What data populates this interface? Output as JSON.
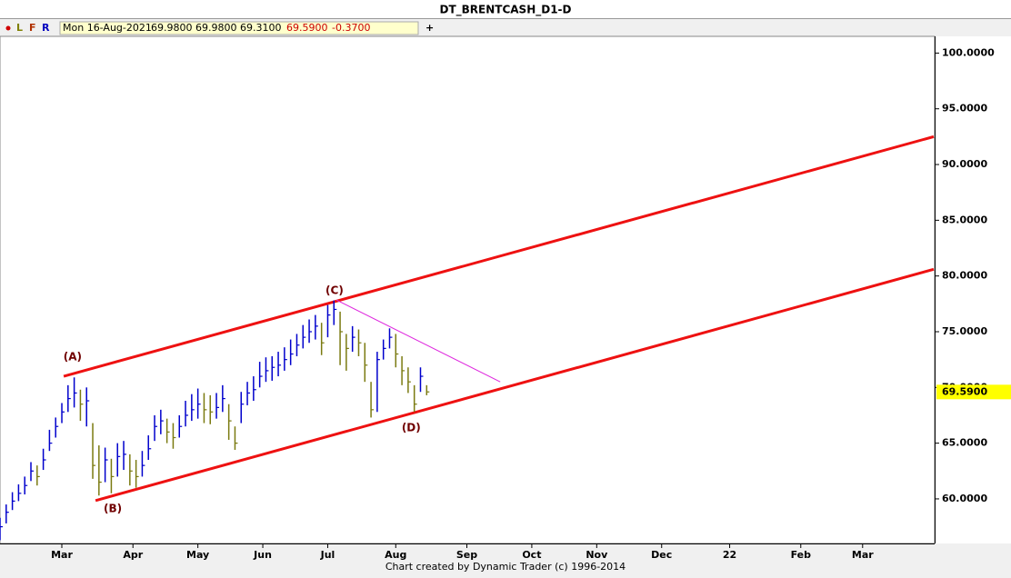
{
  "title": "DT_BRENTCASH_D1-D",
  "toolbar": {
    "buttons": [
      "L",
      "F",
      "R"
    ],
    "info": [
      "Mon 16-Aug-2021",
      "69.9800",
      "69.9800",
      "69.3100",
      "69.5900",
      "-0.3700"
    ],
    "add": "+"
  },
  "chart_data": {
    "type": "ohlc",
    "footer": "Chart created by Dynamic Trader  (c) 1996-2014",
    "up_color": "#0000cc",
    "down_color": "#7a7a10",
    "xlim": [
      0,
      302
    ],
    "ylim": [
      56,
      101.5
    ],
    "xticks": [
      {
        "value": 20,
        "label": "Mar"
      },
      {
        "value": 43,
        "label": "Apr"
      },
      {
        "value": 64,
        "label": "May"
      },
      {
        "value": 85,
        "label": "Jun"
      },
      {
        "value": 106,
        "label": "Jul"
      },
      {
        "value": 128,
        "label": "Aug"
      },
      {
        "value": 151,
        "label": "Sep"
      },
      {
        "value": 172,
        "label": "Oct"
      },
      {
        "value": 193,
        "label": "Nov"
      },
      {
        "value": 214,
        "label": "Dec"
      },
      {
        "value": 236,
        "label": "22"
      },
      {
        "value": 259,
        "label": "Feb"
      },
      {
        "value": 279,
        "label": "Mar"
      }
    ],
    "yticks": [
      {
        "value": 60,
        "label": "60.0000"
      },
      {
        "value": 65,
        "label": "65.0000"
      },
      {
        "value": 70,
        "label": "70.0000"
      },
      {
        "value": 75,
        "label": "75.0000"
      },
      {
        "value": 80,
        "label": "80.0000"
      },
      {
        "value": 85,
        "label": "85.0000"
      },
      {
        "value": 90,
        "label": "90.0000"
      },
      {
        "value": 95,
        "label": "95.0000"
      },
      {
        "value": 100,
        "label": "100.0000"
      }
    ],
    "last_price": {
      "value": 69.59,
      "label": "69.5900",
      "color": "#ffff00"
    },
    "x": [
      0,
      2,
      4,
      6,
      8,
      10,
      12,
      14,
      16,
      18,
      20,
      22,
      24,
      26,
      28,
      30,
      32,
      34,
      36,
      38,
      40,
      42,
      44,
      46,
      48,
      50,
      52,
      54,
      56,
      58,
      60,
      62,
      64,
      66,
      68,
      70,
      72,
      74,
      76,
      78,
      80,
      82,
      84,
      86,
      88,
      90,
      92,
      94,
      96,
      98,
      100,
      102,
      104,
      106,
      108,
      110,
      112,
      114,
      116,
      118,
      120,
      122,
      124,
      126,
      128,
      130,
      132,
      134,
      136,
      138
    ],
    "high": [
      58.3,
      59.5,
      60.6,
      61.3,
      62.0,
      63.3,
      63.0,
      64.5,
      66.2,
      67.3,
      68.6,
      70.2,
      70.9,
      69.8,
      70.0,
      66.8,
      64.8,
      64.6,
      63.6,
      65.0,
      65.2,
      64.0,
      63.5,
      64.3,
      65.7,
      67.5,
      68.0,
      67.2,
      66.8,
      67.5,
      68.8,
      69.4,
      69.9,
      69.5,
      69.3,
      69.5,
      70.2,
      68.5,
      66.5,
      69.6,
      70.5,
      71.0,
      72.3,
      72.7,
      72.8,
      73.2,
      73.6,
      74.3,
      74.8,
      75.6,
      76.1,
      76.5,
      75.8,
      77.4,
      77.8,
      76.8,
      74.8,
      75.5,
      75.2,
      74.0,
      70.5,
      73.2,
      74.3,
      75.3,
      74.8,
      72.8,
      71.8,
      70.2,
      71.8,
      70.2
    ],
    "low": [
      56.3,
      57.8,
      59.0,
      59.8,
      60.4,
      61.6,
      61.2,
      62.6,
      64.3,
      65.5,
      66.8,
      67.8,
      68.2,
      67.0,
      66.5,
      61.8,
      60.3,
      61.5,
      60.5,
      62.0,
      62.6,
      61.2,
      61.0,
      62.0,
      63.5,
      65.2,
      65.8,
      65.0,
      64.5,
      65.5,
      66.5,
      67.0,
      67.2,
      66.8,
      66.7,
      67.2,
      67.8,
      65.3,
      64.4,
      66.8,
      68.4,
      68.8,
      70.0,
      70.5,
      70.6,
      71.0,
      71.5,
      72.0,
      72.8,
      73.5,
      74.0,
      74.3,
      72.9,
      74.5,
      75.6,
      72.0,
      71.5,
      73.2,
      72.8,
      70.5,
      67.3,
      67.8,
      72.5,
      73.5,
      71.8,
      70.2,
      69.5,
      67.8,
      69.6,
      69.3
    ],
    "close": [
      57.5,
      58.8,
      59.8,
      60.5,
      61.2,
      62.5,
      62.0,
      63.5,
      65.0,
      66.5,
      67.8,
      69.0,
      69.5,
      68.5,
      68.8,
      63.0,
      61.5,
      63.5,
      62.0,
      63.8,
      64.0,
      62.5,
      62.0,
      63.0,
      64.5,
      66.5,
      67.0,
      66.0,
      65.5,
      66.5,
      67.5,
      68.0,
      68.5,
      68.0,
      67.8,
      68.2,
      69.0,
      67.0,
      65.0,
      68.5,
      69.5,
      69.8,
      71.0,
      71.5,
      71.8,
      72.0,
      72.5,
      73.0,
      73.8,
      74.5,
      75.0,
      75.5,
      74.0,
      76.5,
      77.0,
      75.0,
      73.5,
      74.5,
      74.0,
      72.0,
      68.0,
      72.5,
      73.5,
      74.5,
      73.0,
      71.5,
      70.5,
      68.5,
      71.0,
      69.6
    ],
    "trend_lines": [
      {
        "x": [
          20.6,
          302
        ],
        "y": [
          71.0,
          92.5
        ],
        "color": "#ee1111",
        "width": 3
      },
      {
        "x": [
          30.9,
          302
        ],
        "y": [
          59.85,
          80.6
        ],
        "color": "#ee1111",
        "width": 3
      },
      {
        "x": [
          108.8,
          161.8
        ],
        "y": [
          77.85,
          70.5
        ],
        "color": "#dd22dd",
        "width": 1
      }
    ],
    "annotations": [
      {
        "text": "(A)",
        "x": 23.5,
        "y": 72.7
      },
      {
        "text": "(B)",
        "x": 36.5,
        "y": 59.1
      },
      {
        "text": "(C)",
        "x": 108.2,
        "y": 78.65
      },
      {
        "text": "(D)",
        "x": 133,
        "y": 66.35
      }
    ]
  }
}
